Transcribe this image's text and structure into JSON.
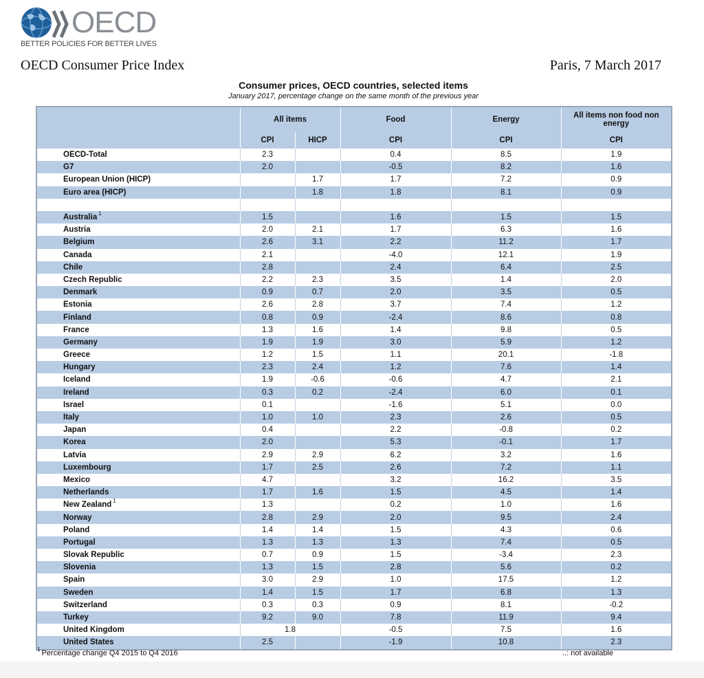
{
  "logo": {
    "name": "OECD",
    "tagline": "BETTER POLICIES FOR BETTER LIVES",
    "colors": {
      "globe": "#1f5f99",
      "chevron": "#6b7177",
      "text": "#8a8f94"
    }
  },
  "header": {
    "title": "OECD Consumer Price Index",
    "date": "Paris, 7 March 2017"
  },
  "table": {
    "title": "Consumer prices, OECD countries, selected items",
    "subtitle": "January 2017, percentage change on the same month of the previous year",
    "groups": {
      "all_items": "All items",
      "food": "Food",
      "energy": "Energy",
      "core": "All items non food non energy"
    },
    "subheaders": {
      "cpi": "CPI",
      "hicp": "HICP"
    },
    "rows": [
      {
        "name": "OECD-Total",
        "cpi": "2.3",
        "hicp": "",
        "food": "0.4",
        "energy": "8.5",
        "core": "1.9"
      },
      {
        "name": "G7",
        "cpi": "2.0",
        "hicp": "",
        "food": "-0.5",
        "energy": "8.2",
        "core": "1.6"
      },
      {
        "name": "European Union (HICP)",
        "cpi": "",
        "hicp": "1.7",
        "food": "1.7",
        "energy": "7.2",
        "core": "0.9"
      },
      {
        "name": "Euro area (HICP)",
        "cpi": "",
        "hicp": "1.8",
        "food": "1.8",
        "energy": "8.1",
        "core": "0.9"
      },
      {
        "name": "",
        "cpi": "",
        "hicp": "",
        "food": "",
        "energy": "",
        "core": ""
      },
      {
        "name": "Australia",
        "note": "1",
        "cpi": "1.5",
        "hicp": "",
        "food": "1.6",
        "energy": "1.5",
        "core": "1.5"
      },
      {
        "name": "Austria",
        "cpi": "2.0",
        "hicp": "2.1",
        "food": "1.7",
        "energy": "6.3",
        "core": "1.6"
      },
      {
        "name": "Belgium",
        "cpi": "2.6",
        "hicp": "3.1",
        "food": "2.2",
        "energy": "11.2",
        "core": "1.7"
      },
      {
        "name": "Canada",
        "cpi": "2.1",
        "hicp": "",
        "food": "-4.0",
        "energy": "12.1",
        "core": "1.9"
      },
      {
        "name": "Chile",
        "cpi": "2.8",
        "hicp": "",
        "food": "2.4",
        "energy": "6.4",
        "core": "2.5"
      },
      {
        "name": "Czech Republic",
        "cpi": "2.2",
        "hicp": "2.3",
        "food": "3.5",
        "energy": "1.4",
        "core": "2.0"
      },
      {
        "name": "Denmark",
        "cpi": "0.9",
        "hicp": "0.7",
        "food": "2.0",
        "energy": "3.5",
        "core": "0.5"
      },
      {
        "name": "Estonia",
        "cpi": "2.6",
        "hicp": "2.8",
        "food": "3.7",
        "energy": "7.4",
        "core": "1.2"
      },
      {
        "name": "Finland",
        "cpi": "0.8",
        "hicp": "0.9",
        "food": "-2.4",
        "energy": "8.6",
        "core": "0.8"
      },
      {
        "name": "France",
        "cpi": "1.3",
        "hicp": "1.6",
        "food": "1.4",
        "energy": "9.8",
        "core": "0.5"
      },
      {
        "name": "Germany",
        "cpi": "1.9",
        "hicp": "1.9",
        "food": "3.0",
        "energy": "5.9",
        "core": "1.2"
      },
      {
        "name": "Greece",
        "cpi": "1.2",
        "hicp": "1.5",
        "food": "1.1",
        "energy": "20.1",
        "core": "-1.8"
      },
      {
        "name": "Hungary",
        "cpi": "2.3",
        "hicp": "2.4",
        "food": "1.2",
        "energy": "7.6",
        "core": "1.4"
      },
      {
        "name": "Iceland",
        "cpi": "1.9",
        "hicp": "-0.6",
        "food": "-0.6",
        "energy": "4.7",
        "core": "2.1"
      },
      {
        "name": "Ireland",
        "cpi": "0.3",
        "hicp": "0.2",
        "food": "-2.4",
        "energy": "6.0",
        "core": "0.1"
      },
      {
        "name": "Israel",
        "cpi": "0.1",
        "hicp": "",
        "food": "-1.6",
        "energy": "5.1",
        "core": "0.0"
      },
      {
        "name": "Italy",
        "cpi": "1.0",
        "hicp": "1.0",
        "food": "2.3",
        "energy": "2.6",
        "core": "0.5"
      },
      {
        "name": "Japan",
        "cpi": "0.4",
        "hicp": "",
        "food": "2.2",
        "energy": "-0.8",
        "core": "0.2"
      },
      {
        "name": "Korea",
        "cpi": "2.0",
        "hicp": "",
        "food": "5.3",
        "energy": "-0.1",
        "core": "1.7"
      },
      {
        "name": "Latvia",
        "cpi": "2.9",
        "hicp": "2.9",
        "food": "6.2",
        "energy": "3.2",
        "core": "1.6"
      },
      {
        "name": "Luxembourg",
        "cpi": "1.7",
        "hicp": "2.5",
        "food": "2.6",
        "energy": "7.2",
        "core": "1.1"
      },
      {
        "name": "Mexico",
        "cpi": "4.7",
        "hicp": "",
        "food": "3.2",
        "energy": "16.2",
        "core": "3.5"
      },
      {
        "name": "Netherlands",
        "cpi": "1.7",
        "hicp": "1.6",
        "food": "1.5",
        "energy": "4.5",
        "core": "1.4"
      },
      {
        "name": "New Zealand",
        "note": "1",
        "cpi": "1.3",
        "hicp": "",
        "food": "0.2",
        "energy": "1.0",
        "core": "1.6"
      },
      {
        "name": "Norway",
        "cpi": "2.8",
        "hicp": "2.9",
        "food": "2.0",
        "energy": "9.5",
        "core": "2.4"
      },
      {
        "name": "Poland",
        "cpi": "1.4",
        "hicp": "1.4",
        "food": "1.5",
        "energy": "4.3",
        "core": "0.6"
      },
      {
        "name": "Portugal",
        "cpi": "1.3",
        "hicp": "1.3",
        "food": "1.3",
        "energy": "7.4",
        "core": "0.5"
      },
      {
        "name": "Slovak Republic",
        "cpi": "0.7",
        "hicp": "0.9",
        "food": "1.5",
        "energy": "-3.4",
        "core": "2.3"
      },
      {
        "name": "Slovenia",
        "cpi": "1.3",
        "hicp": "1.5",
        "food": "2.8",
        "energy": "5.6",
        "core": "0.2"
      },
      {
        "name": "Spain",
        "cpi": "3.0",
        "hicp": "2.9",
        "food": "1.0",
        "energy": "17.5",
        "core": "1.2"
      },
      {
        "name": "Sweden",
        "cpi": "1.4",
        "hicp": "1.5",
        "food": "1.7",
        "energy": "6.8",
        "core": "1.3"
      },
      {
        "name": "Switzerland",
        "cpi": "0.3",
        "hicp": "0.3",
        "food": "0.9",
        "energy": "8.1",
        "core": "-0.2"
      },
      {
        "name": "Turkey",
        "cpi": "9.2",
        "hicp": "9.0",
        "food": "7.8",
        "energy": "11.9",
        "core": "9.4"
      },
      {
        "name": "United Kingdom",
        "merged": "1.8",
        "food": "-0.5",
        "energy": "7.5",
        "core": "1.6"
      },
      {
        "name": "United States",
        "cpi": "2.5",
        "hicp": "",
        "food": "-1.9",
        "energy": "10.8",
        "core": "2.3"
      }
    ]
  },
  "footnote": {
    "mark": "1",
    "text": "Percentage change Q4 2015 to Q4 2016"
  },
  "legend": {
    "not_available": "..: not available"
  }
}
